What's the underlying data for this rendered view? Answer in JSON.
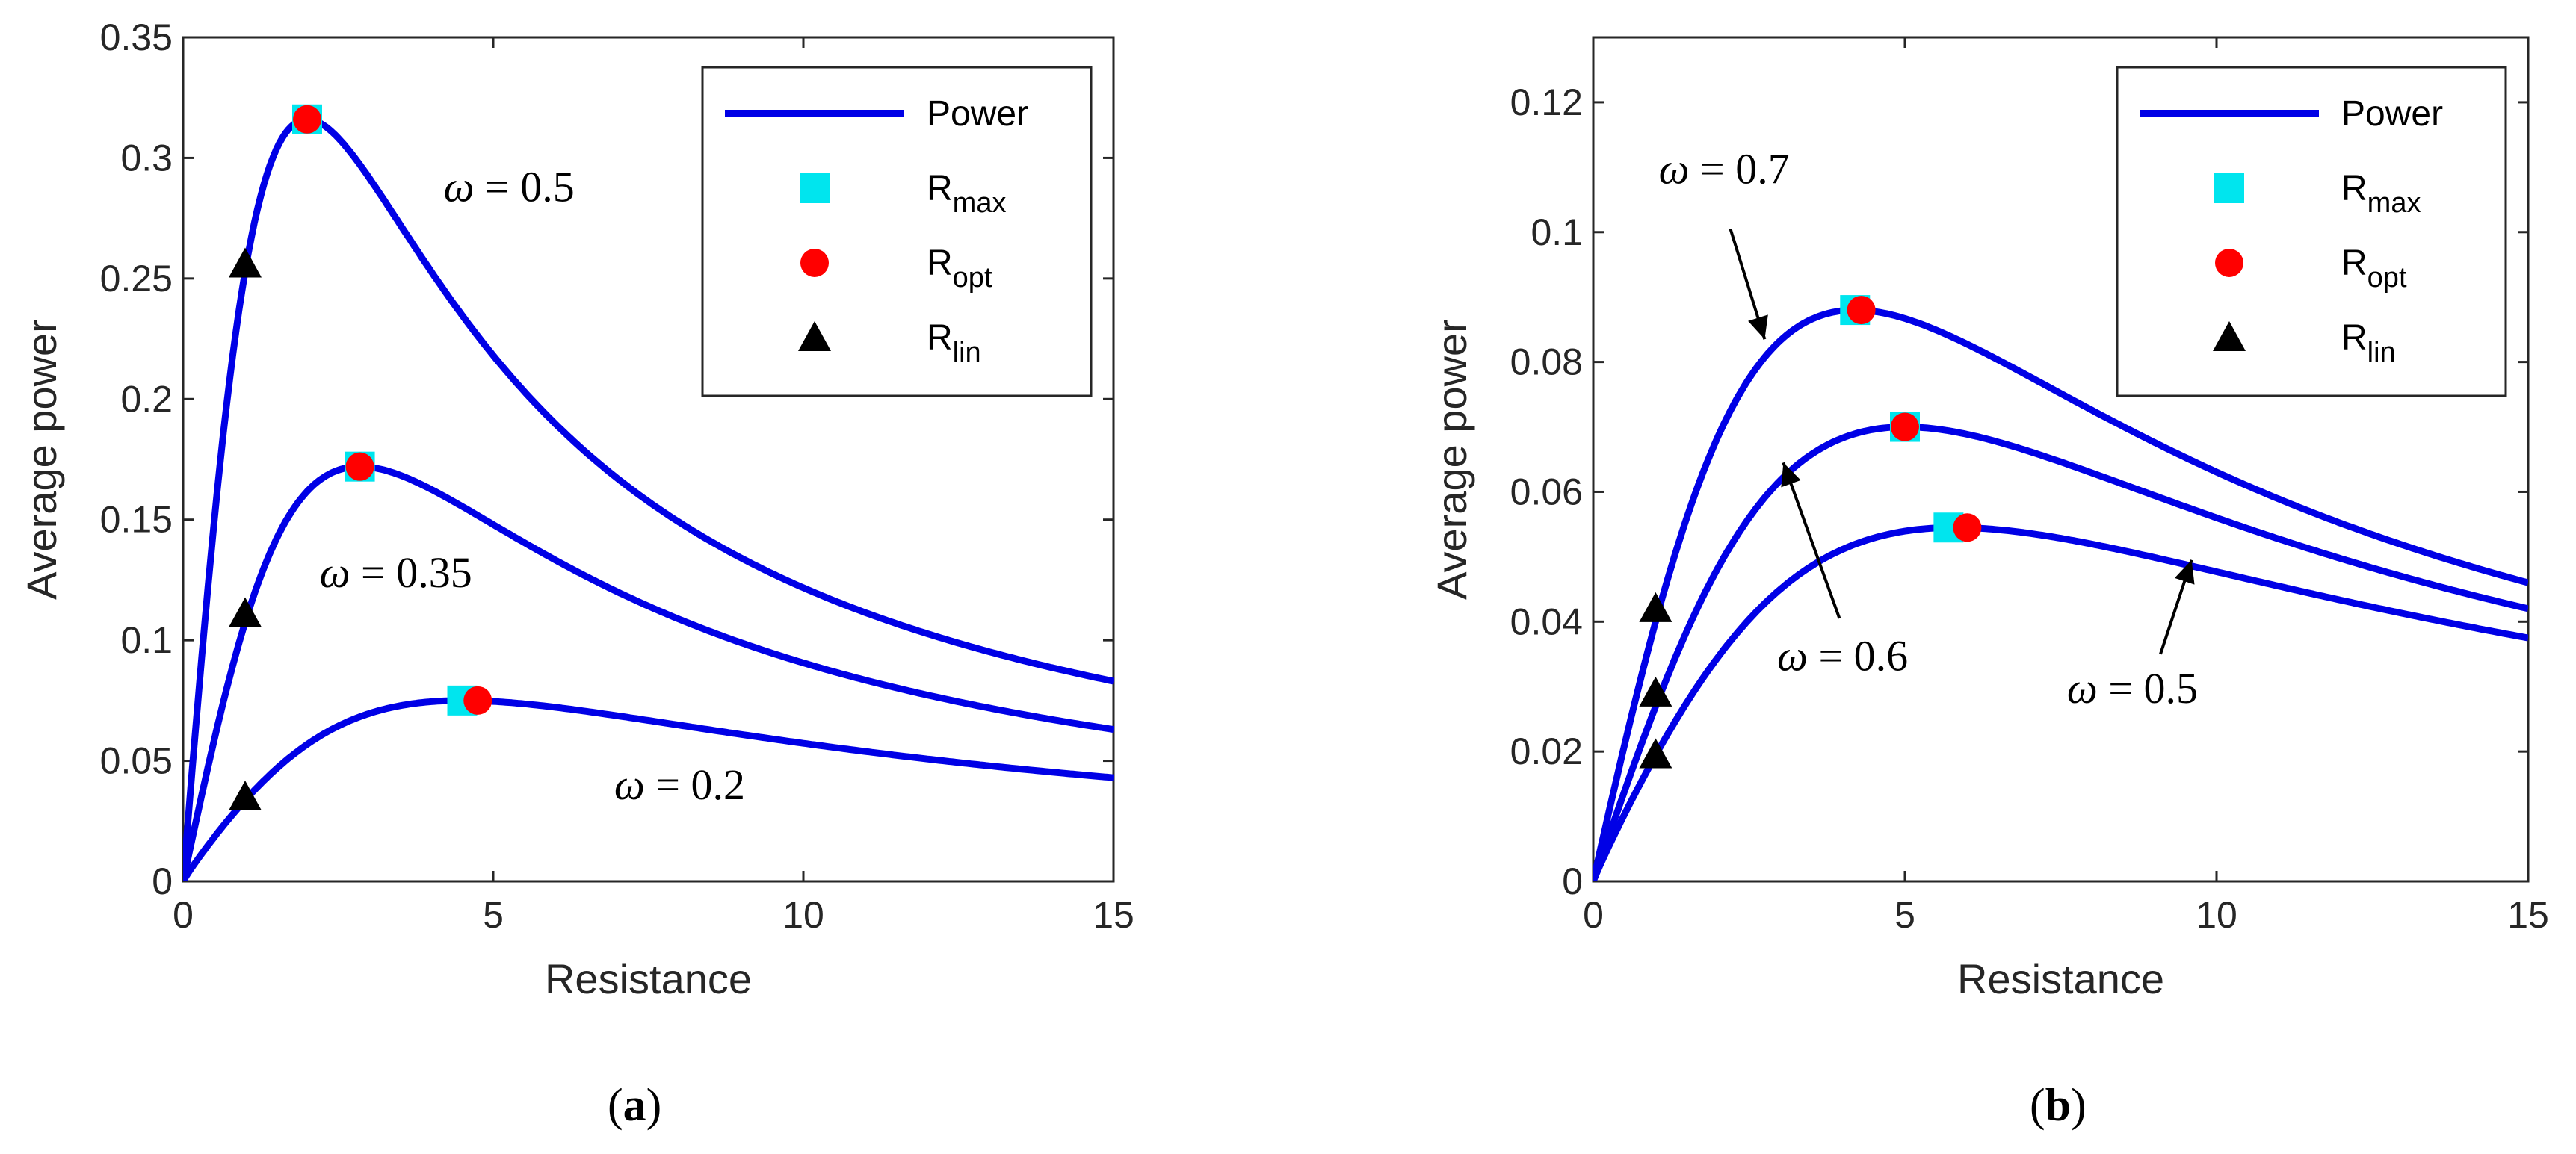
{
  "colors": {
    "curve": "#0000e6",
    "rmax_marker": "#00e5ee",
    "ropt_marker": "#ff0000",
    "rlin_marker": "#000000",
    "axis": "#262626"
  },
  "chart_data": [
    {
      "type": "line",
      "panel_label": "a",
      "xlabel": "Resistance",
      "ylabel": "Average power",
      "xlim": [
        0,
        15
      ],
      "ylim": [
        0,
        0.35
      ],
      "xticks": [
        0,
        5,
        10,
        15
      ],
      "yticks": [
        0,
        0.05,
        0.1,
        0.15,
        0.2,
        0.25,
        0.3,
        0.35
      ],
      "xtick_labels": [
        "0",
        "5",
        "10",
        "15"
      ],
      "ytick_labels": [
        "0",
        "0.05",
        "0.1",
        "0.15",
        "0.2",
        "0.25",
        "0.3",
        "0.35"
      ],
      "legend": {
        "position": "top-right",
        "entries": [
          {
            "label": "Power",
            "sub": ""
          },
          {
            "label": "R",
            "sub": "max"
          },
          {
            "label": "R",
            "sub": "opt"
          },
          {
            "label": "R",
            "sub": "lin"
          }
        ]
      },
      "series": [
        {
          "name": "ω = 0.5",
          "peak_x": 2.0,
          "peak_y": 0.316,
          "end_y": 0.083,
          "rmax": [
            2.0,
            0.316
          ],
          "ropt": [
            2.0,
            0.316
          ],
          "rlin": [
            1.0,
            0.256
          ]
        },
        {
          "name": "ω = 0.35",
          "peak_x": 2.85,
          "peak_y": 0.172,
          "end_y": 0.063,
          "rmax": [
            2.85,
            0.172
          ],
          "ropt": [
            2.85,
            0.172
          ],
          "rlin": [
            1.0,
            0.111
          ]
        },
        {
          "name": "ω = 0.2",
          "peak_x": 4.5,
          "peak_y": 0.075,
          "end_y": 0.043,
          "rmax": [
            4.5,
            0.075
          ],
          "ropt": [
            4.75,
            0.075
          ],
          "rlin": [
            1.0,
            0.035
          ]
        }
      ],
      "annotations": [
        {
          "pre": "ω",
          "text": " = 0.5",
          "x": 4.2,
          "y": 0.282
        },
        {
          "pre": "ω",
          "text": " = 0.35",
          "x": 2.2,
          "y": 0.122
        },
        {
          "pre": "ω",
          "text": " = 0.2",
          "x": 6.95,
          "y": 0.034
        }
      ]
    },
    {
      "type": "line",
      "panel_label": "b",
      "xlabel": "Resistance",
      "ylabel": "Average power",
      "xlim": [
        0,
        15
      ],
      "ylim": [
        0,
        0.13
      ],
      "xticks": [
        0,
        5,
        10,
        15
      ],
      "yticks": [
        0,
        0.02,
        0.04,
        0.06,
        0.08,
        0.1,
        0.12
      ],
      "xtick_labels": [
        "0",
        "5",
        "10",
        "15"
      ],
      "ytick_labels": [
        "0",
        "0.02",
        "0.04",
        "0.06",
        "0.08",
        "0.1",
        "0.12"
      ],
      "legend": {
        "position": "top-right",
        "entries": [
          {
            "label": "Power",
            "sub": ""
          },
          {
            "label": "R",
            "sub": "max"
          },
          {
            "label": "R",
            "sub": "opt"
          },
          {
            "label": "R",
            "sub": "lin"
          }
        ]
      },
      "series": [
        {
          "name": "ω = 0.7",
          "peak_x": 4.2,
          "peak_y": 0.088,
          "end_y": 0.046,
          "rmax": [
            4.2,
            0.088
          ],
          "ropt": [
            4.3,
            0.088
          ],
          "rlin": [
            1.0,
            0.042
          ]
        },
        {
          "name": "ω = 0.6",
          "peak_x": 5.0,
          "peak_y": 0.07,
          "end_y": 0.042,
          "rmax": [
            5.0,
            0.07
          ],
          "ropt": [
            5.0,
            0.07
          ],
          "rlin": [
            1.0,
            0.029
          ]
        },
        {
          "name": "ω = 0.5",
          "peak_x": 5.8,
          "peak_y": 0.0545,
          "end_y": 0.0375,
          "rmax": [
            5.7,
            0.0545
          ],
          "ropt": [
            6.0,
            0.0545
          ],
          "rlin": [
            1.0,
            0.0195
          ]
        }
      ],
      "annotations": [
        {
          "pre": "ω",
          "text": " = 0.7",
          "x": 1.05,
          "y": 0.1075,
          "arrow_from": [
            2.2,
            0.1005
          ],
          "arrow_to": [
            2.75,
            0.0835
          ]
        },
        {
          "pre": "ω",
          "text": " = 0.6",
          "x": 2.95,
          "y": 0.0325,
          "arrow_from": [
            3.95,
            0.0405
          ],
          "arrow_to": [
            3.05,
            0.0645
          ]
        },
        {
          "pre": "ω",
          "text": " = 0.5",
          "x": 7.6,
          "y": 0.0275,
          "arrow_from": [
            9.1,
            0.035
          ],
          "arrow_to": [
            9.6,
            0.0495
          ]
        }
      ]
    }
  ]
}
